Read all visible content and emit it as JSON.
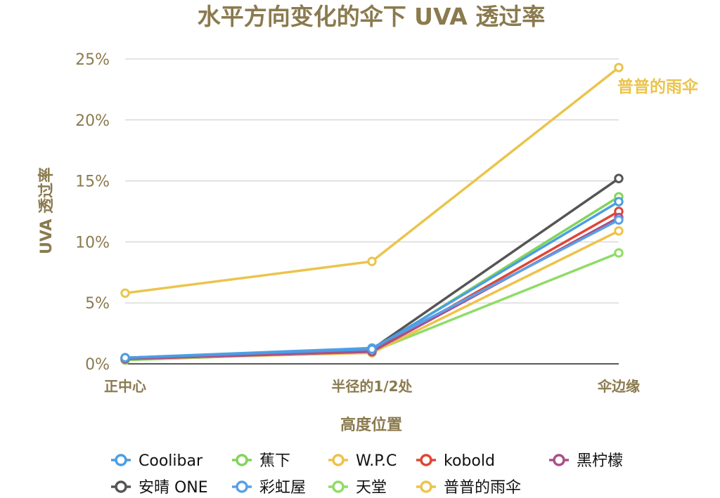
{
  "colors": {
    "text_brown": "#8a7a4e",
    "grid": "#c8c8c8",
    "axis": "#222222"
  },
  "chart_data": {
    "type": "line",
    "title": "水平方向变化的伞下 UVA 透过率",
    "xlabel": "高度位置",
    "ylabel": "UVA 透过率",
    "categories": [
      "正中心",
      "半径的1/2处",
      "伞边缘"
    ],
    "y_ticks": [
      "0%",
      "5%",
      "10%",
      "15%",
      "20%",
      "25%"
    ],
    "ylim": [
      0,
      25
    ],
    "grid": true,
    "legend_position": "bottom",
    "series": [
      {
        "name": "Coolibar",
        "color": "#4a9ee4",
        "values": [
          0.5,
          1.2,
          13.3
        ]
      },
      {
        "name": "蕉下",
        "color": "#82d45a",
        "values": [
          0.4,
          1.1,
          13.7
        ]
      },
      {
        "name": "W.P.C",
        "color": "#eec24a",
        "values": [
          0.4,
          0.9,
          10.9
        ]
      },
      {
        "name": "kobold",
        "color": "#e04535",
        "values": [
          0.4,
          1.0,
          12.5
        ]
      },
      {
        "name": "黑柠檬",
        "color": "#a8508a",
        "values": [
          0.4,
          1.0,
          12.0
        ]
      },
      {
        "name": "安晴 ONE",
        "color": "#555555",
        "values": [
          0.5,
          1.2,
          15.2
        ]
      },
      {
        "name": "彩虹屋",
        "color": "#5aa0e6",
        "values": [
          0.5,
          1.3,
          11.8
        ]
      },
      {
        "name": "天堂",
        "color": "#8fdc66",
        "values": [
          0.3,
          1.0,
          9.1
        ]
      },
      {
        "name": "普普的雨伞",
        "color": "#ebc44c",
        "values": [
          5.8,
          8.4,
          24.3
        ]
      }
    ],
    "annotations": [
      {
        "text": "普普的雨伞",
        "series": "普普的雨伞",
        "category": "伞边缘"
      }
    ]
  }
}
